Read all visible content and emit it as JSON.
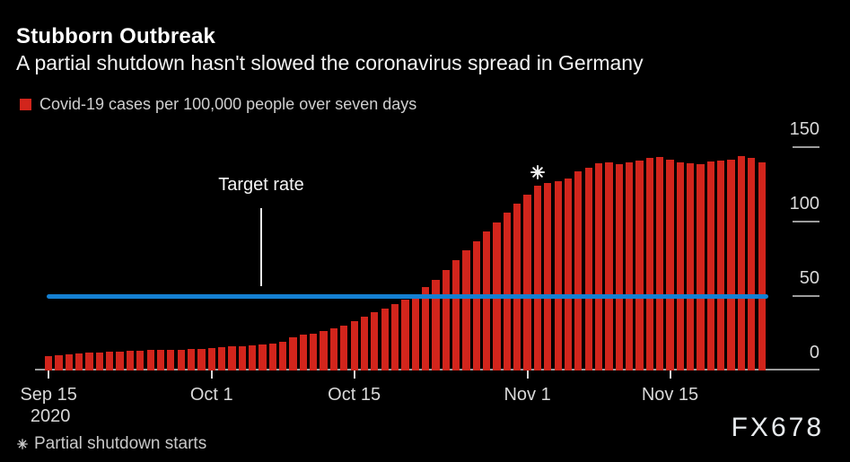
{
  "header": {
    "title": "Stubborn Outbreak",
    "subtitle": "A partial shutdown hasn't slowed the coronavirus spread in Germany",
    "legend": {
      "swatch_color": "#d2251c",
      "label": "Covid-19 cases per 100,000 people over seven days"
    }
  },
  "footer": {
    "footnote": "Partial shutdown starts",
    "watermark": "FX678"
  },
  "colors": {
    "background": "#000000",
    "bar_red": "#d2251c",
    "target_blue": "#1480d2",
    "axis_gray": "#9c9c9c",
    "tick_light": "#d6d6d6",
    "text_light": "#d8d8d8"
  },
  "chart_data": {
    "type": "bar",
    "title": "Stubborn Outbreak",
    "subtitle": "A partial shutdown hasn't slowed the coronavirus spread in Germany",
    "series_name": "Covid-19 cases per 100,000 people over seven days",
    "xlabel": "",
    "ylabel": "",
    "ylim": [
      0,
      150
    ],
    "grid": false,
    "legend_position": "top-left",
    "x_start_date": "Sep 15 2020",
    "x_end_date": "Nov 24 2020",
    "frequency": "daily",
    "values": [
      9.6,
      10.2,
      10.8,
      11.6,
      12.2,
      12.2,
      12.7,
      12.7,
      13.3,
      13.3,
      13.7,
      13.7,
      14.0,
      14.0,
      14.4,
      14.7,
      15.3,
      15.7,
      16.0,
      16.3,
      16.7,
      17.3,
      18.2,
      19.3,
      22.0,
      24.3,
      24.9,
      26.3,
      28.3,
      30.3,
      32.9,
      36.3,
      39.0,
      41.4,
      44.4,
      47.4,
      51.4,
      56.0,
      60.8,
      67.5,
      74.1,
      80.5,
      86.6,
      93.6,
      99.6,
      106.0,
      112.0,
      118.0,
      124.0,
      126.0,
      127.0,
      129.0,
      134.0,
      136.0,
      139.0,
      140.0,
      138.5,
      140.0,
      141.0,
      143.0,
      143.5,
      141.5,
      139.5,
      139.0,
      138.5,
      140.5,
      141.0,
      141.5,
      144.0,
      142.5,
      140.0
    ],
    "y_ticks": [
      0,
      50,
      100,
      150
    ],
    "x_ticks": [
      {
        "label": "Sep 15",
        "label2": "2020",
        "day": 0
      },
      {
        "label": "Oct 1",
        "day": 16
      },
      {
        "label": "Oct 15",
        "day": 30
      },
      {
        "label": "Nov 1",
        "day": 47
      },
      {
        "label": "Nov 15",
        "day": 61
      }
    ],
    "reference_line": {
      "label": "Target rate",
      "value": 50,
      "color": "#1480d2"
    },
    "marker": {
      "day": 48,
      "note": "Partial shutdown starts"
    }
  }
}
